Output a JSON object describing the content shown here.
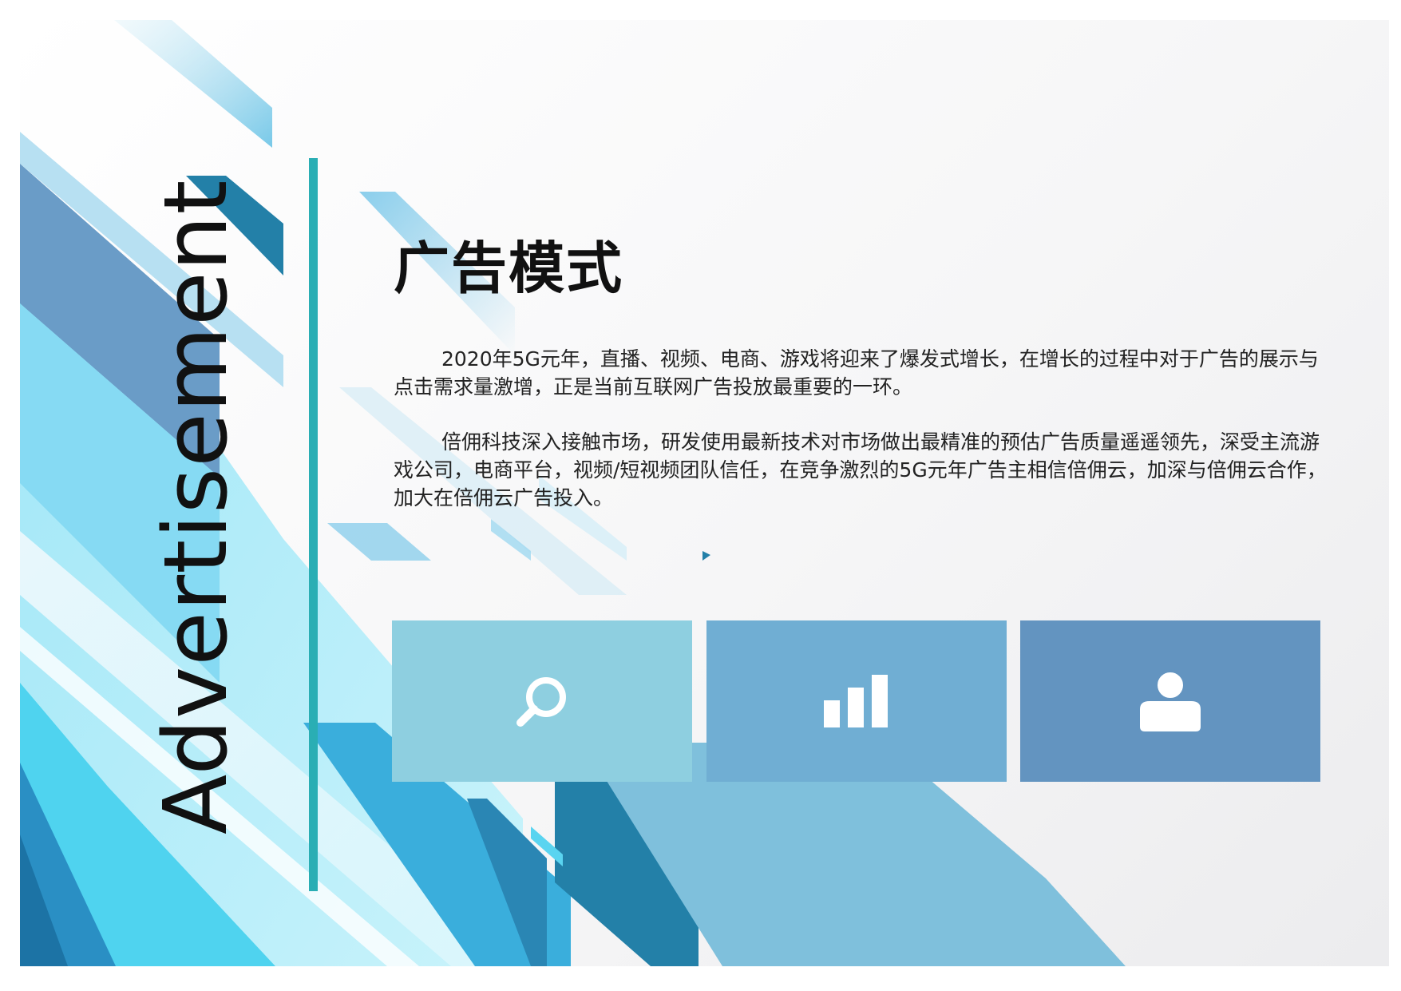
{
  "side_label": "Advertisement",
  "title": "广告模式",
  "paragraphs": [
    "2020年5G元年，直播、视频、电商、游戏将迎来了爆发式增长，在增长的过程中对于广告的展示与点击需求量激增，正是当前互联网广告投放最重要的一环。",
    "倍佣科技深入接触市场，研发使用最新技术对市场做出最精准的预估广告质量遥遥领先，深受主流游戏公司，电商平台，视频/短视频团队信任，在竞争激烈的5G元年广告主相信倍佣云，加深与倍佣云合作，加大在倍佣云广告投入。"
  ],
  "tiles": [
    {
      "icon": "search-icon",
      "color": "#8ecfe0"
    },
    {
      "icon": "bar-chart-icon",
      "color": "#70aed3"
    },
    {
      "icon": "user-icon",
      "color": "#6394c0"
    }
  ],
  "colors": {
    "accent_bar": "#2aaeb4",
    "blue_light": "#8ee0f2",
    "blue_mid": "#3aaedc",
    "blue_dark": "#2380a8",
    "steel": "#6a9cc7"
  }
}
